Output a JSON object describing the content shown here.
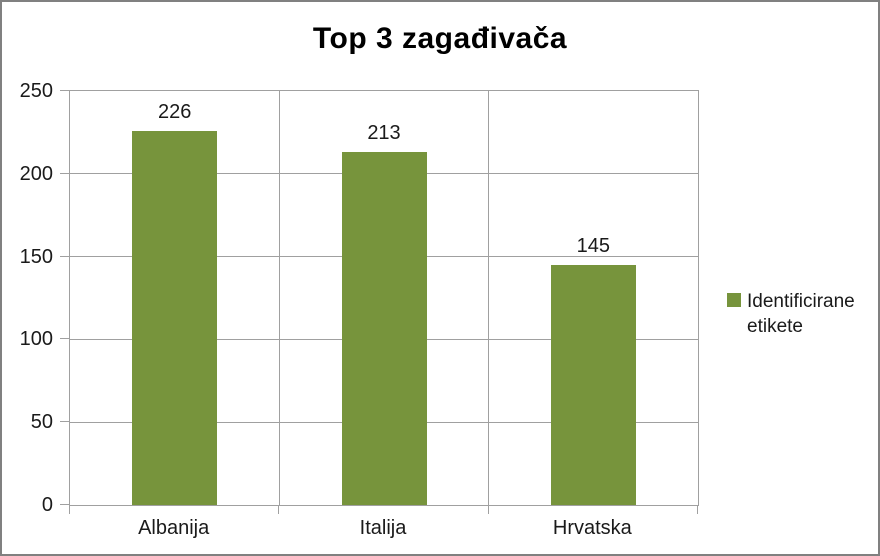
{
  "title": "Top 3 zagađivača",
  "colors": {
    "bar": "#77943C",
    "grid": "#A0A0A0",
    "frame_border": "#808080",
    "text": "#1A1A1A"
  },
  "chart_data": {
    "type": "bar",
    "title": "Top 3 zagađivača",
    "categories": [
      "Albanija",
      "Italija",
      "Hrvatska"
    ],
    "series": [
      {
        "name": "Identificirane etikete",
        "values": [
          226,
          213,
          145
        ]
      }
    ],
    "data_labels": [
      "226",
      "213",
      "145"
    ],
    "xlabel": "",
    "ylabel": "",
    "ylim": [
      0,
      250
    ],
    "yticks": [
      0,
      50,
      100,
      150,
      200,
      250
    ],
    "ytick_labels": [
      "0",
      "50",
      "100",
      "150",
      "200",
      "250"
    ],
    "grid": true,
    "legend_position": "right"
  },
  "legend": {
    "label": "Identificirane etikete"
  }
}
